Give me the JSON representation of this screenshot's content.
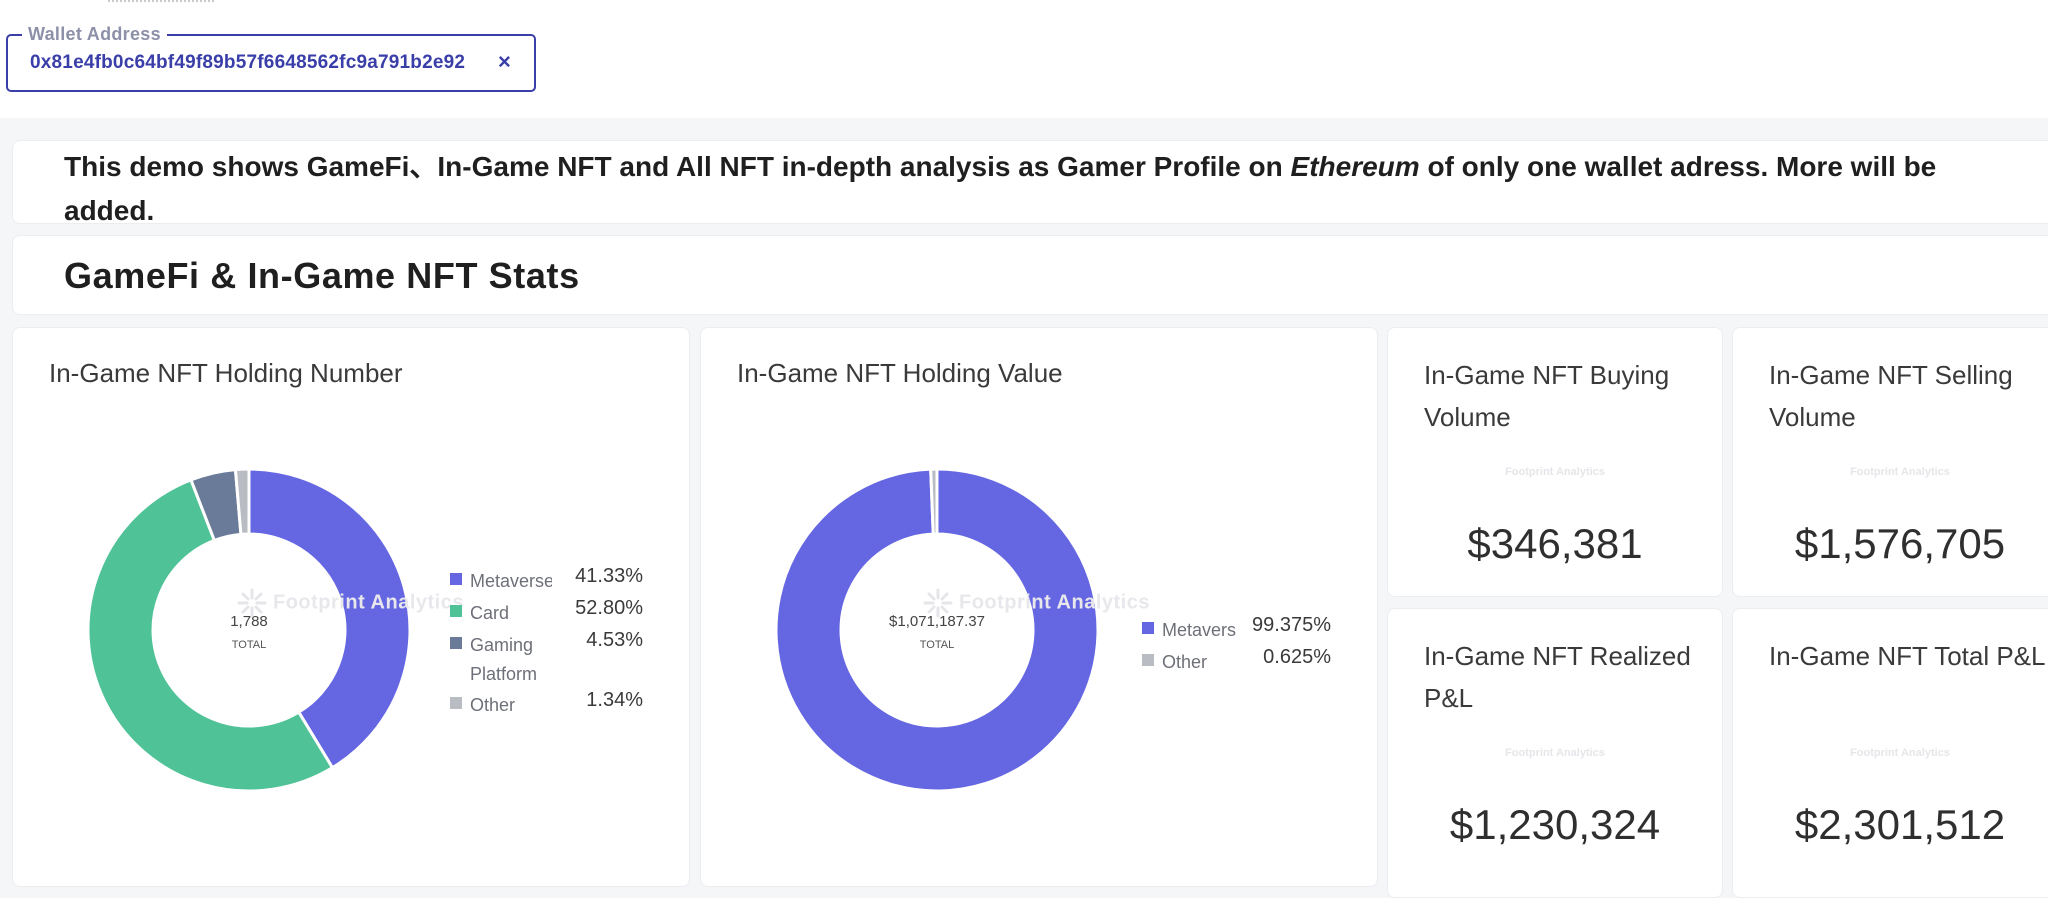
{
  "wallet": {
    "label": "Wallet Address",
    "value": "0x81e4fb0c64bf49f89b57f6648562fc9a791b2e92",
    "clear_icon": "×"
  },
  "demo": {
    "text_before": "This demo shows GameFi、In-Game NFT and All NFT in-depth analysis as Gamer Profile on ",
    "text_emph": "Ethereum",
    "text_after": " of only one wallet adress. More will be added."
  },
  "section": {
    "title": "GameFi & In-Game NFT Stats"
  },
  "watermark": {
    "text": "Footprint Analytics"
  },
  "colors": {
    "metaverse": "#6566e2",
    "card": "#4fc297",
    "gaming_platform": "#6a7a99",
    "other": "#b9bcc2"
  },
  "chart_data": [
    {
      "type": "pie",
      "title": "In-Game NFT Holding Number",
      "center_value": "1,788",
      "center_label": "TOTAL",
      "slices": [
        {
          "name": "Metaverse",
          "legend_text": "Metaverse",
          "value": 41.33,
          "pct_label": "41.33%",
          "color": "#6566e2"
        },
        {
          "name": "Card",
          "legend_text": "Card",
          "value": 52.8,
          "pct_label": "52.80%",
          "color": "#4fc297"
        },
        {
          "name": "Gaming Platform",
          "legend_text": "Gaming Platform",
          "value": 4.53,
          "pct_label": "4.53%",
          "color": "#6a7a99"
        },
        {
          "name": "Other",
          "legend_text": "Other",
          "value": 1.34,
          "pct_label": "1.34%",
          "color": "#b9bcc2"
        }
      ]
    },
    {
      "type": "pie",
      "title": "In-Game NFT Holding Value",
      "center_value": "$1,071,187.37",
      "center_label": "TOTAL",
      "slices": [
        {
          "name": "Metaverse",
          "legend_text": "Metavers",
          "value": 99.375,
          "pct_label": "99.375%",
          "color": "#6566e2"
        },
        {
          "name": "Other",
          "legend_text": "Other",
          "value": 0.625,
          "pct_label": "0.625%",
          "color": "#b9bcc2"
        }
      ]
    }
  ],
  "stats": [
    {
      "title": "In-Game NFT Buying Volume",
      "value": "$346,381"
    },
    {
      "title": "In-Game NFT Selling Volume",
      "value": "$1,576,705"
    },
    {
      "title": "In-Game NFT Realized P&L",
      "value": "$1,230,324"
    },
    {
      "title": "In-Game NFT Total P&L",
      "value": "$2,301,512"
    }
  ]
}
